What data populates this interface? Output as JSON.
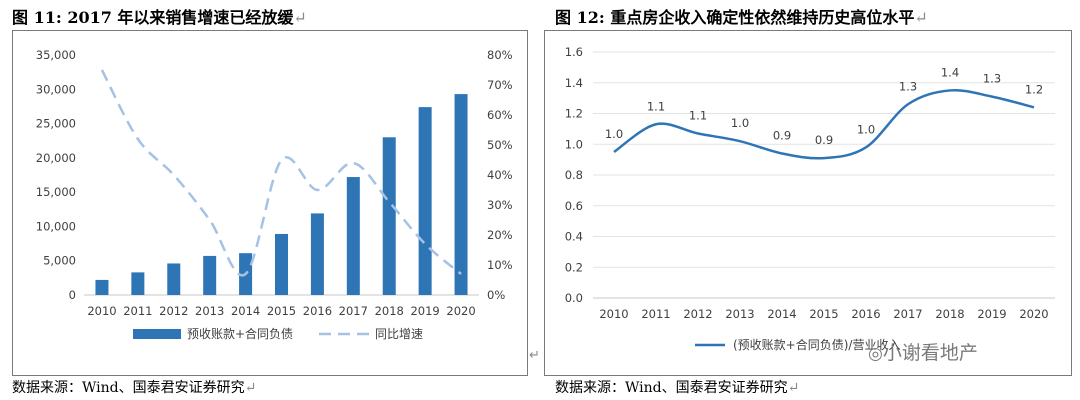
{
  "left": {
    "title": "图 11: 2017 年以来销售增速已经放缓",
    "source": "数据来源：Wind、国泰君安证券研究",
    "return_mark": "↵"
  },
  "right": {
    "title": "图 12: 重点房企收入确定性依然维持历史高位水平",
    "source": "数据来源：Wind、国泰君安证券研究",
    "return_mark": "↵"
  },
  "panel_mark": "↵",
  "watermark": "小谢看地产",
  "colors": {
    "bar": "#2e75b6",
    "dashed_line": "#a4c2e4",
    "line": "#2e75b6",
    "grid": "#e3e3e3",
    "axis": "#c8c8c8"
  },
  "chart_data": [
    {
      "type": "bar",
      "title": "2017 年以来销售增速已经放缓",
      "categories": [
        "2010",
        "2011",
        "2012",
        "2013",
        "2014",
        "2015",
        "2016",
        "2017",
        "2018",
        "2019",
        "2020"
      ],
      "series": [
        {
          "name": "预收账款+合同负债",
          "type": "bar",
          "axis": "left",
          "values": [
            2200,
            3300,
            4600,
            5700,
            6100,
            8900,
            11900,
            17200,
            23000,
            27400,
            29300
          ]
        },
        {
          "name": "同比增速",
          "type": "line",
          "style": "dashed",
          "axis": "right",
          "values": [
            0.75,
            0.52,
            0.4,
            0.25,
            0.07,
            0.45,
            0.35,
            0.44,
            0.31,
            0.17,
            0.07
          ]
        }
      ],
      "y_left": {
        "min": 0,
        "max": 35000,
        "step": 5000,
        "tick_labels": [
          "0",
          "5,000",
          "10,000",
          "15,000",
          "20,000",
          "25,000",
          "30,000",
          "35,000"
        ]
      },
      "y_right": {
        "min": 0,
        "max": 0.8,
        "step": 0.1,
        "tick_labels": [
          "0%",
          "10%",
          "20%",
          "30%",
          "40%",
          "50%",
          "60%",
          "70%",
          "80%"
        ]
      },
      "grid": false,
      "legend": {
        "position": "bottom",
        "entries": [
          "预收账款+合同负债",
          "同比增速"
        ]
      }
    },
    {
      "type": "line",
      "title": "重点房企收入确定性依然维持历史高位水平",
      "categories": [
        "2010",
        "2011",
        "2012",
        "2013",
        "2014",
        "2015",
        "2016",
        "2017",
        "2018",
        "2019",
        "2020"
      ],
      "series": [
        {
          "name": "(预收账款+合同负债)/营业收入",
          "values": [
            0.95,
            1.13,
            1.07,
            1.02,
            0.94,
            0.91,
            0.98,
            1.26,
            1.35,
            1.31,
            1.24
          ],
          "data_labels": [
            "1.0",
            "1.1",
            "1.1",
            "1.0",
            "0.9",
            "0.9",
            "1.0",
            "1.3",
            "1.4",
            "1.3",
            "1.2"
          ]
        }
      ],
      "y": {
        "min": 0,
        "max": 1.6,
        "step": 0.2,
        "tick_labels": [
          "0.0",
          "0.2",
          "0.4",
          "0.6",
          "0.8",
          "1.0",
          "1.2",
          "1.4",
          "1.6"
        ]
      },
      "grid": true,
      "legend": {
        "position": "bottom",
        "entries": [
          "(预收账款+合同负债)/营业收入"
        ]
      }
    }
  ]
}
